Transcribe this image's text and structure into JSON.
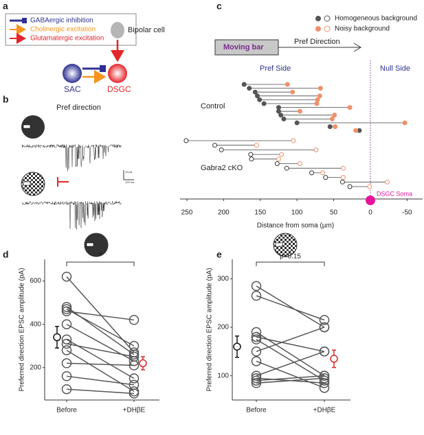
{
  "panel_a": {
    "letter": "a",
    "legend": [
      "GABAergic inhibition",
      "Cholinergic excitation",
      "Glutamatergic excitation"
    ],
    "bipolar": "Bipolar cell",
    "sac": "SAC",
    "dsgc": "DSGC"
  },
  "panel_b": {
    "letter": "b",
    "title": "Pref direction",
    "scale_y": "10 pA",
    "scale_x": "100 ms"
  },
  "chart_data": [
    {
      "letter": "c",
      "type": "dumbbell",
      "legend": [
        "Homogeneous background",
        "Noisy background"
      ],
      "colors": [
        "#555555",
        "#f0906a"
      ],
      "bar_label": "Moving bar",
      "direction_label": "Pref Direction",
      "pref_side": "Pref Side",
      "null_side": "Null Side",
      "soma_label": "DSGC Soma",
      "xlabel": "Distance from soma (µm)",
      "xlim": [
        270,
        -65
      ],
      "xticks": [
        250,
        200,
        150,
        100,
        50,
        0,
        -50
      ],
      "groups": [
        {
          "name": "Control",
          "homogeneous": [
            172,
            165,
            157,
            154,
            151,
            145,
            125,
            125,
            122,
            118,
            100,
            55,
            15
          ],
          "noisy": [
            113,
            68,
            106,
            69,
            72,
            73,
            28,
            96,
            49,
            52,
            -47,
            48,
            20
          ]
        },
        {
          "name": "Gabra2 cKO",
          "homogeneous": [
            251,
            212,
            203,
            163,
            162,
            127,
            114,
            80,
            61,
            38,
            28
          ],
          "noisy": [
            105,
            155,
            74,
            121,
            125,
            96,
            37,
            65,
            37,
            -23,
            1
          ]
        }
      ]
    },
    {
      "letter": "d",
      "type": "paired",
      "categories": [
        "Before",
        "+DHβE"
      ],
      "ylabel": "Preferred direction EPSC amplitude (pA)",
      "ylim": [
        50,
        700
      ],
      "yticks": [
        200,
        400,
        600
      ],
      "annotation": "*",
      "before": [
        620,
        480,
        470,
        460,
        400,
        330,
        310,
        280,
        220,
        160,
        100
      ],
      "after": [
        270,
        260,
        300,
        420,
        230,
        150,
        250,
        90,
        210,
        120,
        80
      ],
      "means": [
        340,
        220
      ],
      "errors": [
        50,
        30
      ],
      "colors": [
        "#555555",
        "#111111",
        "#d62728"
      ]
    },
    {
      "letter": "e",
      "type": "paired",
      "categories": [
        "Before",
        "+DHβE"
      ],
      "ylabel": "Preferred direction EPSC amplitude (pA)",
      "ylim": [
        50,
        340
      ],
      "yticks": [
        100,
        200,
        300
      ],
      "annotation": "p=0.15",
      "before": [
        285,
        265,
        190,
        180,
        175,
        150,
        130,
        100,
        95,
        90,
        85
      ],
      "after": [
        200,
        215,
        100,
        150,
        90,
        200,
        75,
        150,
        85,
        100,
        95
      ],
      "means": [
        160,
        135
      ],
      "errors": [
        22,
        18
      ],
      "colors": [
        "#555555",
        "#111111",
        "#d62728"
      ]
    }
  ]
}
